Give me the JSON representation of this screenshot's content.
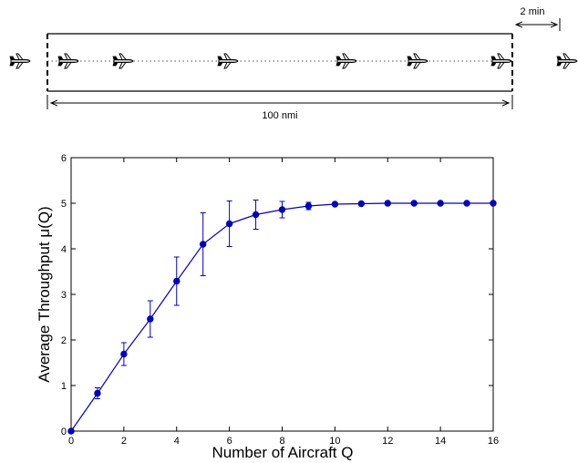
{
  "diagram": {
    "length_label": "100 nmi",
    "spacing_label": "2 min",
    "aircraft_count_inside": 6
  },
  "chart_data": {
    "type": "line",
    "xlabel": "Number of Aircraft Q",
    "ylabel": "Average Throughput μ(Q)",
    "xlim": [
      0,
      16
    ],
    "ylim": [
      0,
      6
    ],
    "xticks": [
      0,
      2,
      4,
      6,
      8,
      10,
      12,
      14,
      16
    ],
    "yticks": [
      0,
      1,
      2,
      3,
      4,
      5,
      6
    ],
    "grid": false,
    "color": "#0000cc",
    "series": [
      {
        "x": [
          0,
          1,
          2,
          3,
          4,
          5,
          6,
          7,
          8,
          9,
          10,
          11,
          12,
          13,
          14,
          15,
          16
        ],
        "y": [
          0,
          0.83,
          1.69,
          2.46,
          3.29,
          4.1,
          4.55,
          4.75,
          4.86,
          4.94,
          4.98,
          4.99,
          5.0,
          5.0,
          5.0,
          5.0,
          5.0
        ],
        "err": [
          0,
          0.12,
          0.25,
          0.4,
          0.53,
          0.69,
          0.5,
          0.32,
          0.18,
          0.08,
          0.03,
          0.02,
          0.01,
          0.01,
          0.01,
          0.01,
          0.01
        ]
      }
    ]
  }
}
